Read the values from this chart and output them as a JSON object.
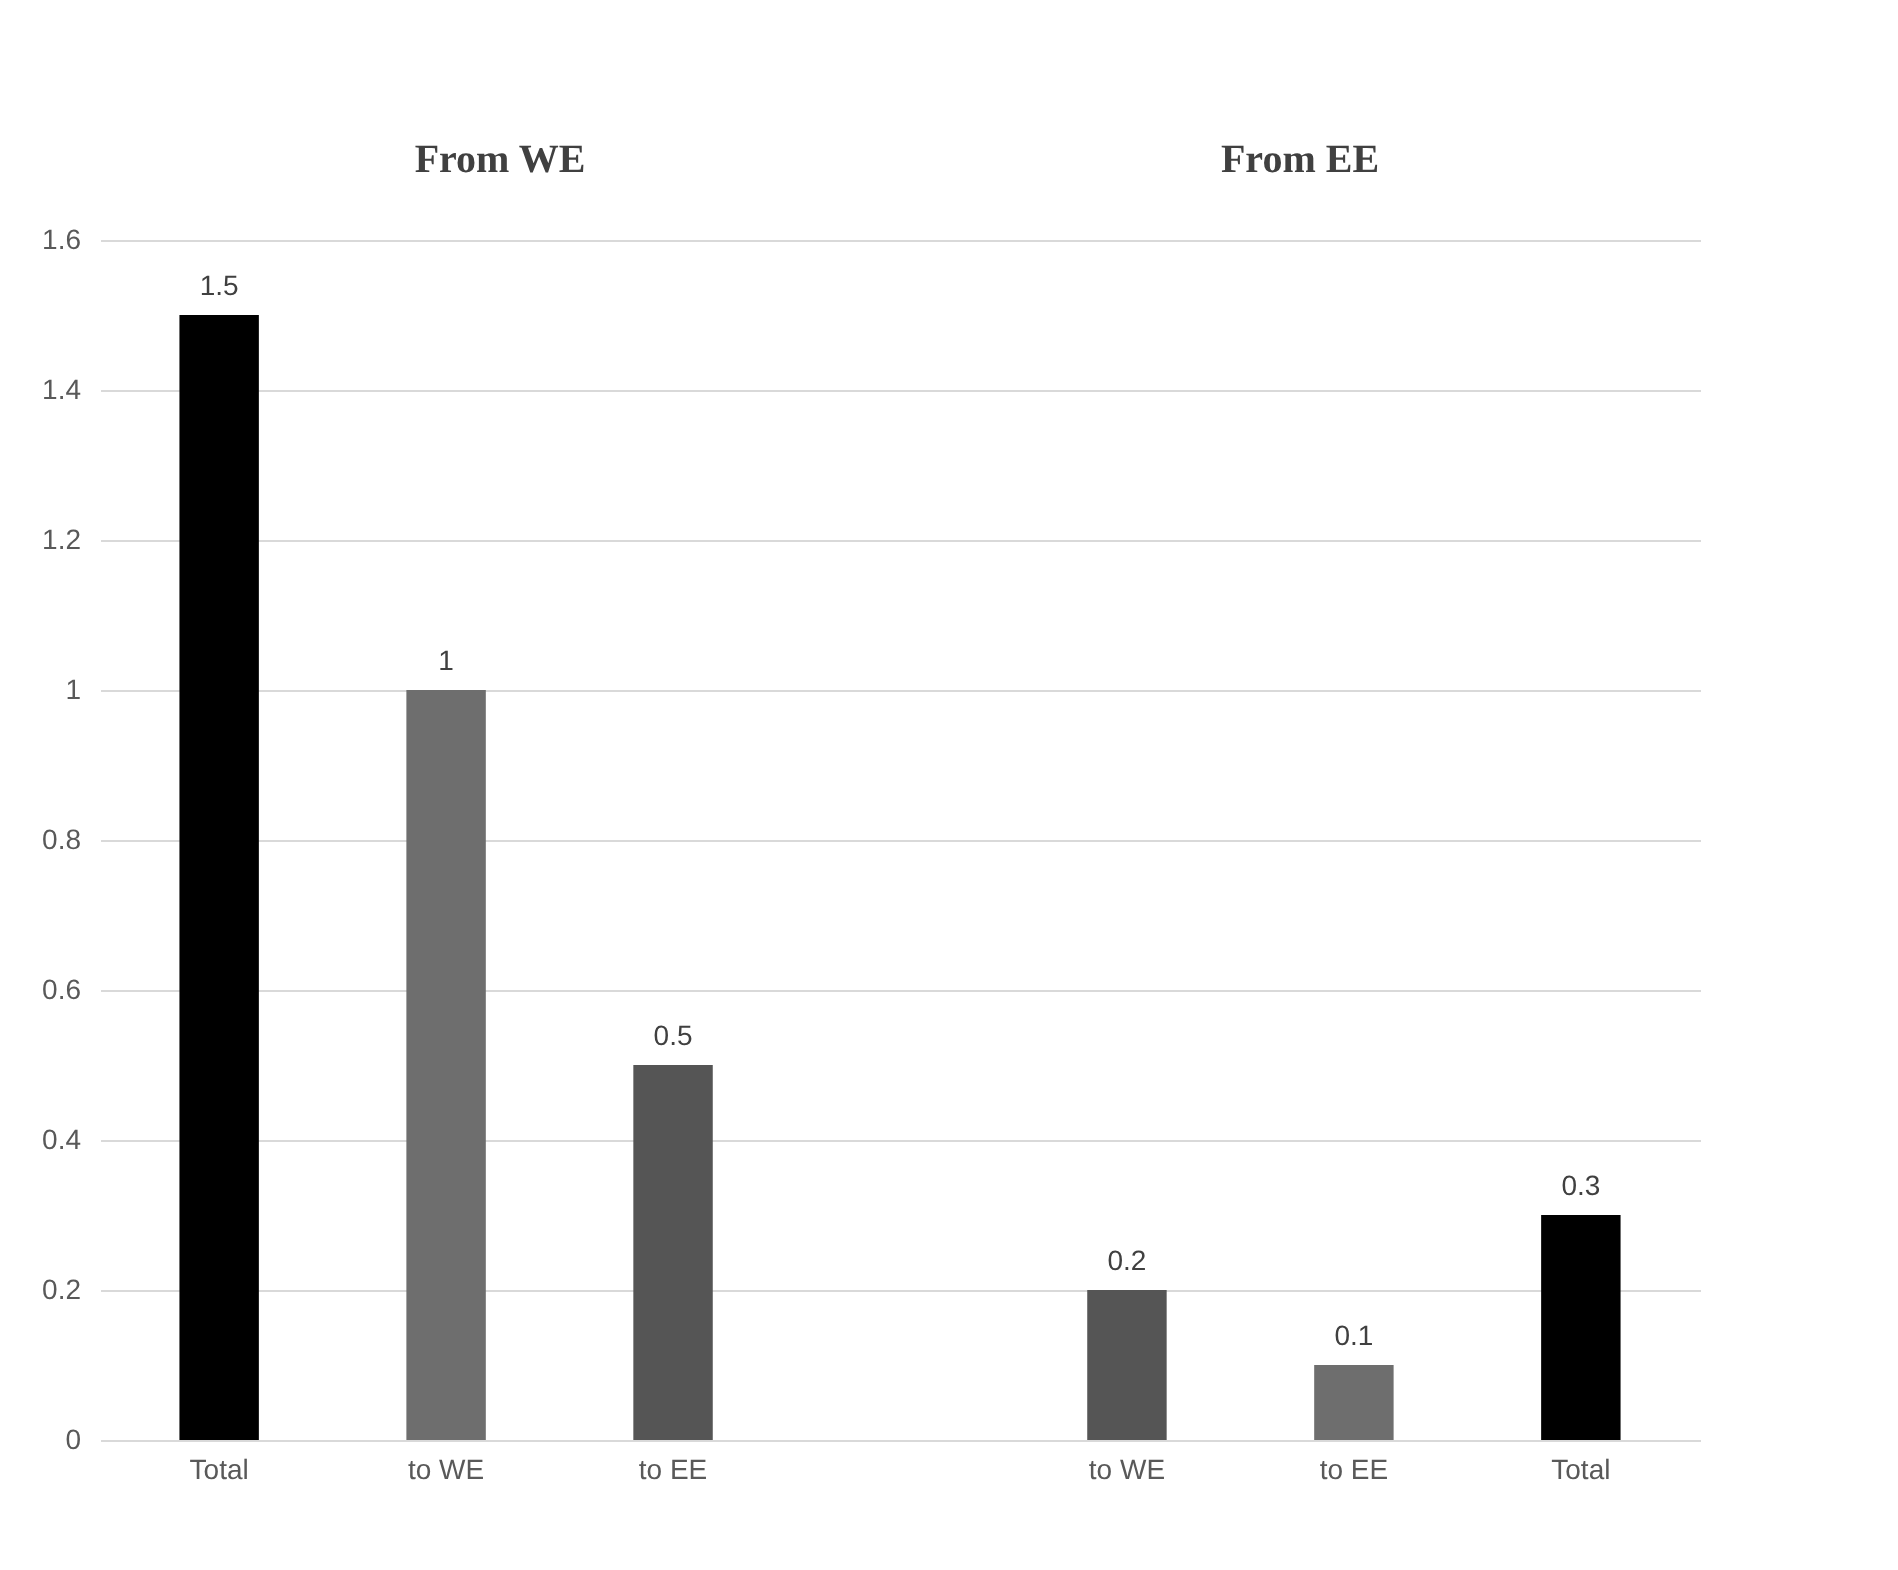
{
  "chart_data": {
    "type": "bar",
    "categories": [
      "Total",
      "to WE",
      "to EE",
      null,
      "to WE",
      "to EE",
      "Total"
    ],
    "values": [
      1.5,
      1,
      0.5,
      null,
      0.2,
      0.1,
      0.3
    ],
    "colors": [
      "#000000",
      "#6e6e6e",
      "#555555",
      "#ffffff",
      "#555555",
      "#6e6e6e",
      "#000000"
    ],
    "ylim": [
      0,
      1.6
    ],
    "yticks": [
      0,
      0.2,
      0.4,
      0.6,
      0.8,
      1,
      1.2,
      1.4,
      1.6
    ],
    "grid": "y",
    "data_labels": true,
    "annotations": [
      "From WE",
      "From EE"
    ]
  }
}
